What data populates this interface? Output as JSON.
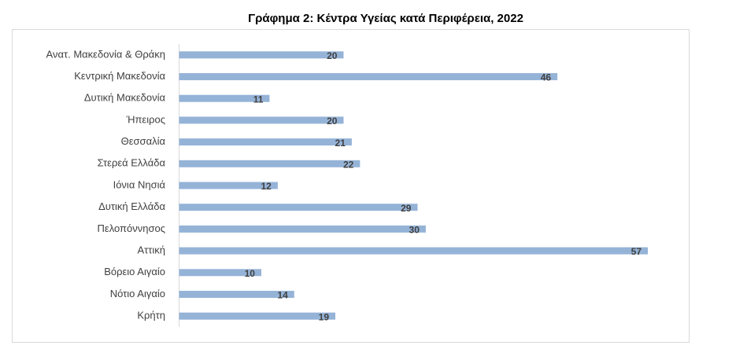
{
  "chart_data": {
    "type": "hbar",
    "title": "Γράφημα 2: Κέντρα Υγείας κατά Περιφέρεια, 2022",
    "categories": [
      "Ανατ. Μακεδονία & Θράκη",
      "Κεντρική Μακεδονία",
      "Δυτική Μακεδονία",
      "Ήπειρος",
      "Θεσσαλία",
      "Στερεά Ελλάδα",
      "Ιόνια Νησιά",
      "Δυτική Ελλάδα",
      "Πελοπόννησος",
      "Αττική",
      "Βόρειο Αιγαίο",
      "Νότιο Αιγαίο",
      "Κρήτη"
    ],
    "values": [
      20,
      46,
      11,
      20,
      21,
      22,
      12,
      29,
      30,
      57,
      10,
      14,
      19
    ],
    "color": "#95b3d7"
  }
}
